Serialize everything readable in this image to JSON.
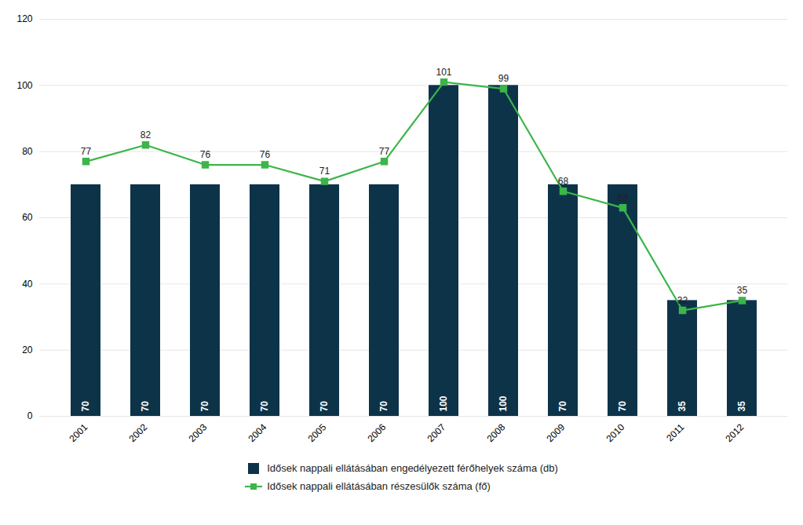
{
  "chart_data": {
    "type": "bar",
    "categories": [
      "2001",
      "2002",
      "2003",
      "2004",
      "2005",
      "2006",
      "2007",
      "2008",
      "2009",
      "2010",
      "2011",
      "2012"
    ],
    "series": [
      {
        "name": "Idősek nappali ellátásában engedélyezett férőhelyek száma (db)",
        "type": "bar",
        "color": "#0d3349",
        "values": [
          70,
          70,
          70,
          70,
          70,
          70,
          100,
          100,
          70,
          70,
          35,
          35
        ]
      },
      {
        "name": "Idősek nappali ellátásában részesülők száma (fő)",
        "type": "line",
        "color": "#3cb54a",
        "marker": "square",
        "line_style": "solid",
        "values": [
          77,
          82,
          76,
          76,
          71,
          77,
          101,
          99,
          68,
          63,
          32,
          35
        ]
      }
    ],
    "ylim": [
      0,
      120
    ],
    "yticks": [
      0,
      20,
      40,
      60,
      80,
      100,
      120
    ],
    "grid": true,
    "legend": "bottom",
    "data_labels": true
  }
}
